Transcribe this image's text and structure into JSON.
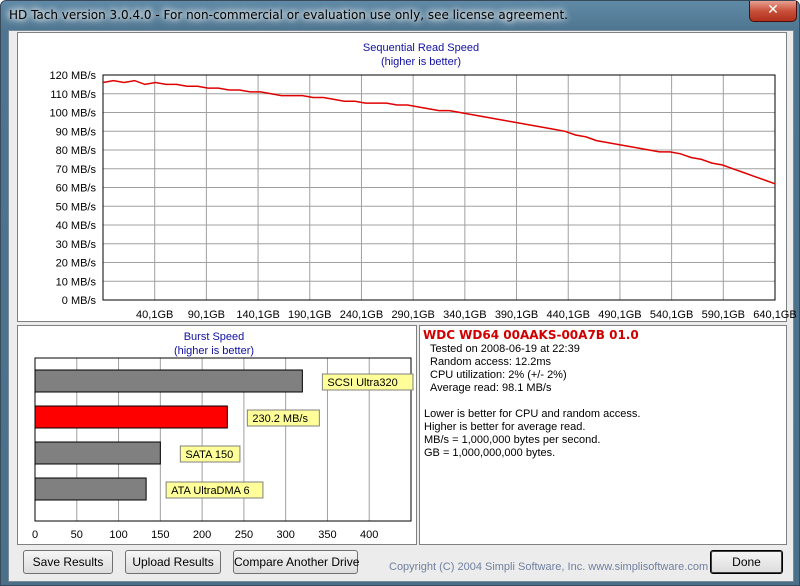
{
  "window": {
    "title": "HD Tach version 3.0.4.0  - For non-commercial or evaluation use only, see license agreement.",
    "close_label": "✕"
  },
  "sequential": {
    "title_line1": "Sequential Read Speed",
    "title_line2": "(higher is better)"
  },
  "burst": {
    "title_line1": "Burst Speed",
    "title_line2": "(higher is better)"
  },
  "info": {
    "drive": "WDC WD64 00AAKS-00A7B 01.0",
    "tested": "Tested on 2008-06-19 at 22:39",
    "random_access": "Random access: 12.2ms",
    "cpu": "CPU utilization: 2% (+/- 2%)",
    "average_read": "Average read: 98.1 MB/s",
    "note1": "Lower is better for CPU and random access.",
    "note2": "Higher is better for average read.",
    "note3": "MB/s = 1,000,000 bytes per second.",
    "note4": "GB = 1,000,000,000 bytes."
  },
  "buttons": {
    "save": "Save Results",
    "upload": "Upload Results",
    "compare": "Compare Another Drive",
    "done": "Done"
  },
  "copyright": "Copyright (C) 2004 Simpli Software, Inc. www.simplisoftware.com",
  "colors": {
    "line": "#e00000",
    "highlight_bar": "#ff0000",
    "gray_bar": "#808080",
    "label_bg": "#ffff99"
  },
  "chart_data": [
    {
      "type": "line",
      "title": "Sequential Read Speed",
      "subtitle": "(higher is better)",
      "ylabel_unit": "MB/s",
      "ylim": [
        0,
        120
      ],
      "yticks": [
        "0 MB/s",
        "10 MB/s",
        "20 MB/s",
        "30 MB/s",
        "40 MB/s",
        "50 MB/s",
        "60 MB/s",
        "70 MB/s",
        "80 MB/s",
        "90 MB/s",
        "100 MB/s",
        "110 MB/s",
        "120 MB/s"
      ],
      "xlim": [
        0,
        640
      ],
      "xticks": [
        "40,1GB",
        "90,1GB",
        "140,1GB",
        "190,1GB",
        "240,1GB",
        "290,1GB",
        "340,1GB",
        "390,1GB",
        "440,1GB",
        "490,1GB",
        "540,1GB",
        "590,1GB",
        "640,1GB"
      ],
      "grid": true,
      "series": [
        {
          "x": [
            0,
            10,
            20,
            30,
            40,
            50,
            60,
            70,
            80,
            90,
            100,
            110,
            120,
            130,
            140,
            150,
            160,
            170,
            180,
            190,
            200,
            210,
            220,
            230,
            240,
            250,
            260,
            270,
            280,
            290,
            300,
            310,
            320,
            330,
            340,
            350,
            360,
            370,
            380,
            390,
            400,
            410,
            420,
            430,
            440,
            450,
            460,
            470,
            480,
            490,
            500,
            510,
            520,
            530,
            540,
            550,
            560,
            570,
            580,
            590,
            600,
            610,
            620,
            630,
            640
          ],
          "y": [
            116,
            117,
            116,
            117,
            115,
            116,
            115,
            115,
            114,
            114,
            113,
            113,
            112,
            112,
            111,
            111,
            110,
            109,
            109,
            109,
            108,
            108,
            107,
            106,
            106,
            105,
            105,
            105,
            104,
            104,
            103,
            102,
            101,
            101,
            100,
            99,
            98,
            97,
            96,
            95,
            94,
            93,
            92,
            91,
            90,
            88,
            87,
            85,
            84,
            83,
            82,
            81,
            80,
            79,
            79,
            78,
            76,
            75,
            73,
            72,
            70,
            68,
            66,
            64,
            62
          ]
        }
      ]
    },
    {
      "type": "bar",
      "title": "Burst Speed",
      "subtitle": "(higher is better)",
      "orientation": "horizontal",
      "xlim": [
        0,
        450
      ],
      "xticks": [
        "0",
        "50",
        "100",
        "150",
        "200",
        "250",
        "300",
        "350",
        "400"
      ],
      "categories": [
        "SCSI Ultra320",
        "230.2 MB/s",
        "SATA 150",
        "ATA UltraDMA 6"
      ],
      "values": [
        320,
        230.2,
        150,
        133
      ]
    }
  ]
}
